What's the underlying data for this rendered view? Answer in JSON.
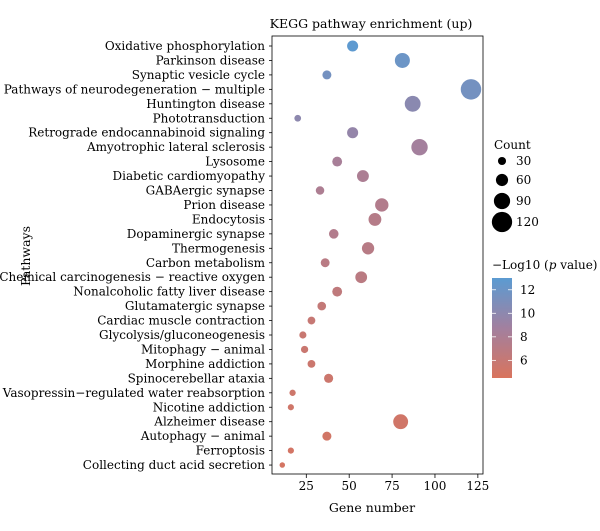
{
  "chart_data": {
    "type": "scatter",
    "title": "KEGG pathway enrichment (up)",
    "xlabel": "Gene number",
    "ylabel": "Pathways",
    "xlim": [
      5,
      128
    ],
    "xticks": [
      25,
      50,
      75,
      100,
      125
    ],
    "grid": false,
    "size_legend": {
      "title": "Count",
      "values": [
        30,
        60,
        90,
        120
      ]
    },
    "color_legend": {
      "title_prefix": "−Log10 (",
      "title_italic": "p",
      "title_suffix": " value)",
      "ticks": [
        12,
        10,
        8,
        6
      ],
      "range": [
        4.5,
        13
      ],
      "color_low": "#d9745d",
      "color_mid": "#a2809f",
      "color_high": "#5b9bd2"
    },
    "points": [
      {
        "pathway": "Oxidative phosphorylation",
        "x": 52,
        "logp": 12.8
      },
      {
        "pathway": "Parkinson disease",
        "x": 81,
        "logp": 12.0
      },
      {
        "pathway": "Synaptic vesicle cycle",
        "x": 37,
        "logp": 11.5
      },
      {
        "pathway": "Pathways of neurodegeneration − multiple",
        "x": 121,
        "logp": 11.5
      },
      {
        "pathway": "Huntington disease",
        "x": 87,
        "logp": 10.2
      },
      {
        "pathway": "Phototransduction",
        "x": 20,
        "logp": 10.0
      },
      {
        "pathway": "Retrograde endocannabinoid signaling",
        "x": 52,
        "logp": 9.6
      },
      {
        "pathway": "Amyotrophic lateral sclerosis",
        "x": 91,
        "logp": 8.6
      },
      {
        "pathway": "Lysosome",
        "x": 43,
        "logp": 8.3
      },
      {
        "pathway": "Diabetic cardiomyopathy",
        "x": 58,
        "logp": 8.0
      },
      {
        "pathway": "GABAergic synapse",
        "x": 33,
        "logp": 7.9
      },
      {
        "pathway": "Prion disease",
        "x": 69,
        "logp": 7.5
      },
      {
        "pathway": "Endocytosis",
        "x": 65,
        "logp": 7.3
      },
      {
        "pathway": "Dopaminergic synapse",
        "x": 41,
        "logp": 7.5
      },
      {
        "pathway": "Thermogenesis",
        "x": 61,
        "logp": 7.1
      },
      {
        "pathway": "Carbon metabolism",
        "x": 36,
        "logp": 7.0
      },
      {
        "pathway": "Chemical carcinogenesis − reactive oxygen",
        "x": 57,
        "logp": 6.9
      },
      {
        "pathway": "Nonalcoholic fatty liver disease",
        "x": 43,
        "logp": 6.5
      },
      {
        "pathway": "Glutamatergic synapse",
        "x": 34,
        "logp": 6.2
      },
      {
        "pathway": "Cardiac muscle contraction",
        "x": 28,
        "logp": 6.0
      },
      {
        "pathway": "Glycolysis/gluconeogenesis",
        "x": 23,
        "logp": 5.8
      },
      {
        "pathway": "Mitophagy − animal",
        "x": 24,
        "logp": 5.7
      },
      {
        "pathway": "Morphine addiction",
        "x": 28,
        "logp": 5.6
      },
      {
        "pathway": "Spinocerebellar ataxia",
        "x": 38,
        "logp": 5.5
      },
      {
        "pathway": "Vasopressin−regulated water reabsorption",
        "x": 17,
        "logp": 5.4
      },
      {
        "pathway": "Nicotine addiction",
        "x": 16,
        "logp": 5.3
      },
      {
        "pathway": "Alzheimer disease",
        "x": 80,
        "logp": 5.2
      },
      {
        "pathway": "Autophagy − animal",
        "x": 37,
        "logp": 5.1
      },
      {
        "pathway": "Ferroptosis",
        "x": 16,
        "logp": 5.0
      },
      {
        "pathway": "Collecting duct acid secretion",
        "x": 11,
        "logp": 4.9
      }
    ]
  }
}
